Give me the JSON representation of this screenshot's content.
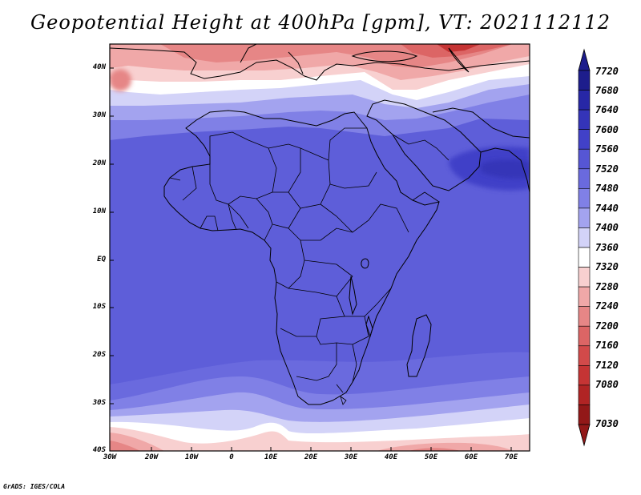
{
  "title": "Geopotential Height at 400hPa [gpm], VT: 2021112112",
  "credit": "GrADS: IGES/COLA",
  "axes": {
    "lat_labels": [
      "40N",
      "30N",
      "20N",
      "10N",
      "EQ",
      "10S",
      "20S",
      "30S",
      "40S"
    ],
    "lon_labels": [
      "30W",
      "20W",
      "10W",
      "0",
      "10E",
      "20E",
      "30E",
      "40E",
      "50E",
      "60E",
      "70E"
    ]
  },
  "colorbar": {
    "levels": [
      7720,
      7680,
      7640,
      7600,
      7560,
      7520,
      7480,
      7440,
      7400,
      7360,
      7320,
      7280,
      7240,
      7200,
      7160,
      7120,
      7080,
      7030
    ],
    "colors": [
      "#1d1d8c",
      "#2727a6",
      "#3434b8",
      "#4141c8",
      "#5656d4",
      "#6a6ade",
      "#8080e6",
      "#a3a3ef",
      "#d3d3f8",
      "#ffffff",
      "#f8d0d0",
      "#f0a8a8",
      "#e68686",
      "#dc6565",
      "#d24a4a",
      "#c53434",
      "#b02424",
      "#921818"
    ]
  },
  "map": {
    "variable": "Geopotential Height",
    "level": "400hPa",
    "units": "gpm",
    "valid_time": "2021112112",
    "lon_range": [
      -30,
      75
    ],
    "lat_range": [
      -40,
      45
    ]
  }
}
